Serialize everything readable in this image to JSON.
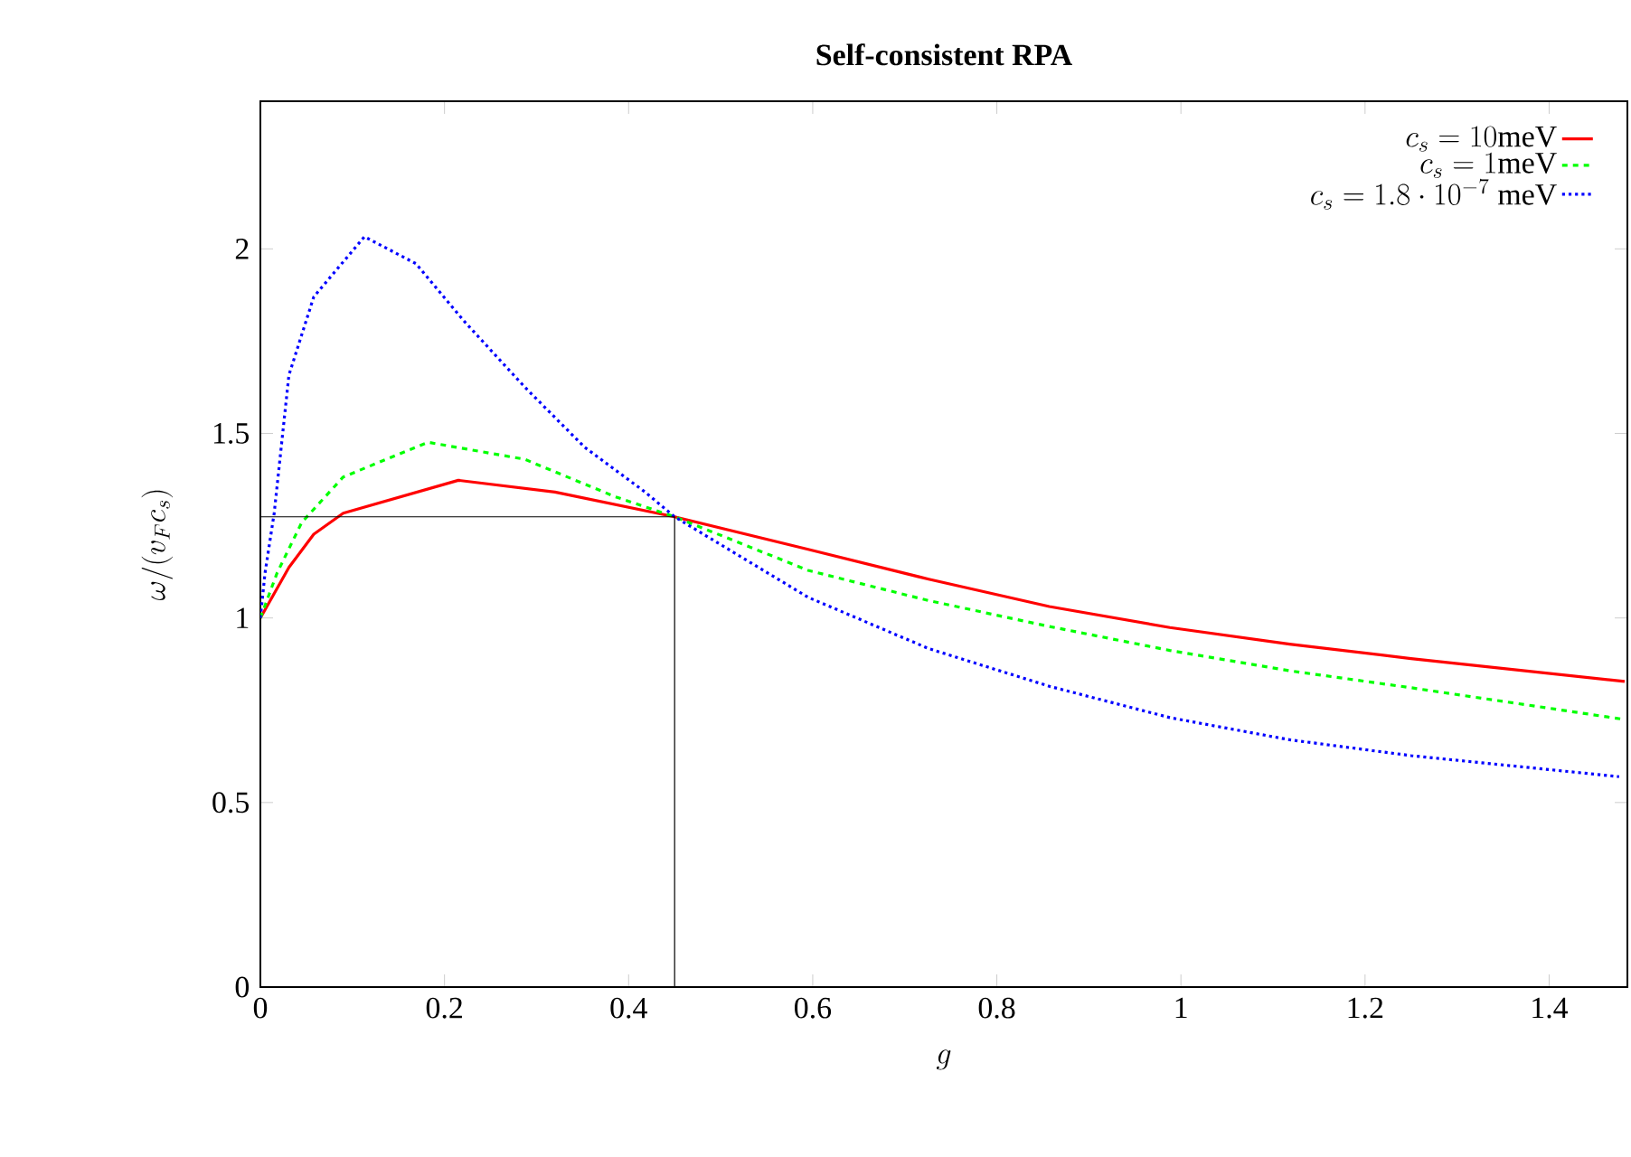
{
  "chart_data": {
    "type": "line",
    "title": "Self-consistent RPA",
    "xlabel": "g",
    "ylabel": "\\omega/(v_F c_s)",
    "xlim": [
      0,
      1.485
    ],
    "ylim": [
      0,
      2.4
    ],
    "xticks": [
      0,
      0.2,
      0.4,
      0.6,
      0.8,
      1,
      1.2,
      1.4
    ],
    "yticks": [
      0,
      0.5,
      1,
      1.5,
      2
    ],
    "legend": "top right",
    "marker": "none",
    "series": [
      {
        "name": "c_s = 10\\mathrm{meV}",
        "color": "#ff0000",
        "line_style": "solid",
        "x": [
          0,
          0.031,
          0.058,
          0.09,
          0.215,
          0.32,
          0.45,
          0.595,
          0.726,
          0.857,
          0.988,
          1.118,
          1.25,
          1.482
        ],
        "values": [
          1.0,
          1.137,
          1.227,
          1.284,
          1.373,
          1.341,
          1.274,
          1.186,
          1.105,
          1.031,
          0.974,
          0.929,
          0.89,
          0.828
        ]
      },
      {
        "name": "c_s = 1\\mathrm{meV}",
        "color": "#00ff00",
        "line_style": "dashed",
        "x": [
          0,
          0.018,
          0.045,
          0.09,
          0.182,
          0.287,
          0.385,
          0.45,
          0.595,
          0.726,
          0.857,
          0.988,
          1.118,
          1.25,
          1.482
        ],
        "values": [
          1.0,
          1.121,
          1.259,
          1.382,
          1.476,
          1.43,
          1.329,
          1.274,
          1.129,
          1.047,
          0.977,
          0.912,
          0.857,
          0.811,
          0.725
        ]
      },
      {
        "name": "c_s = 1.8\\cdot 10^{-7}\\ \\mathrm{meV}",
        "color": "#0000ff",
        "line_style": "dotted",
        "x": [
          0,
          0.005,
          0.015,
          0.031,
          0.058,
          0.113,
          0.169,
          0.221,
          0.287,
          0.352,
          0.418,
          0.45,
          0.595,
          0.726,
          0.857,
          0.988,
          1.118,
          1.25,
          1.476
        ],
        "values": [
          1.0,
          1.121,
          1.284,
          1.658,
          1.87,
          2.033,
          1.96,
          1.805,
          1.626,
          1.463,
          1.341,
          1.274,
          1.056,
          0.917,
          0.815,
          0.73,
          0.67,
          0.627,
          0.57
        ]
      },
      {
        "color": "#000000",
        "line_style": "solid",
        "x": [
          0,
          0.45,
          0.45
        ],
        "values": [
          1.274,
          1.274,
          0
        ]
      }
    ]
  }
}
